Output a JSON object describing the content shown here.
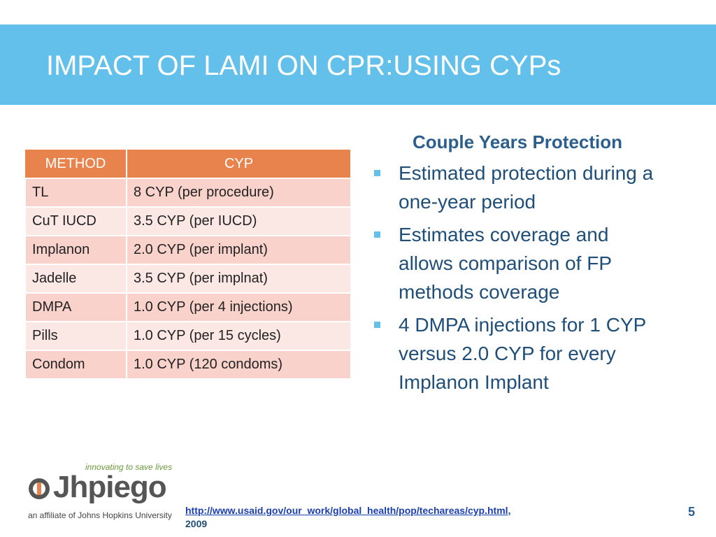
{
  "header": {
    "title": "IMPACT OF LAMI ON CPR:USING CYPs"
  },
  "table": {
    "columns": [
      "METHOD",
      "CYP"
    ],
    "rows": [
      [
        "TL",
        "8 CYP (per procedure)"
      ],
      [
        "CuT IUCD",
        "3.5 CYP (per IUCD)"
      ],
      [
        "Implanon",
        "2.0 CYP (per implant)"
      ],
      [
        "Jadelle",
        "3.5 CYP (per implnat)"
      ],
      [
        "DMPA",
        "1.0 CYP (per 4 injections)"
      ],
      [
        "Pills",
        "1.0 CYP (per 15 cycles)"
      ],
      [
        "Condom",
        "1.0 CYP (120 condoms)"
      ]
    ]
  },
  "panel": {
    "heading": "Couple Years Protection",
    "bullets": [
      "Estimated protection during a one-year period",
      "Estimates coverage and allows comparison of FP methods coverage",
      "4 DMPA injections for 1 CYP versus 2.0 CYP for every Implanon Implant"
    ]
  },
  "logo": {
    "tagline": "innovating to save lives",
    "name": "Jhpiego",
    "affiliation": "an affiliate of Johns Hopkins University"
  },
  "footer": {
    "link": "http://www.usaid.gov/our_work/global_health/pop/techareas/cyp.html",
    "link_suffix": ",",
    "year": "2009",
    "page": "5"
  }
}
